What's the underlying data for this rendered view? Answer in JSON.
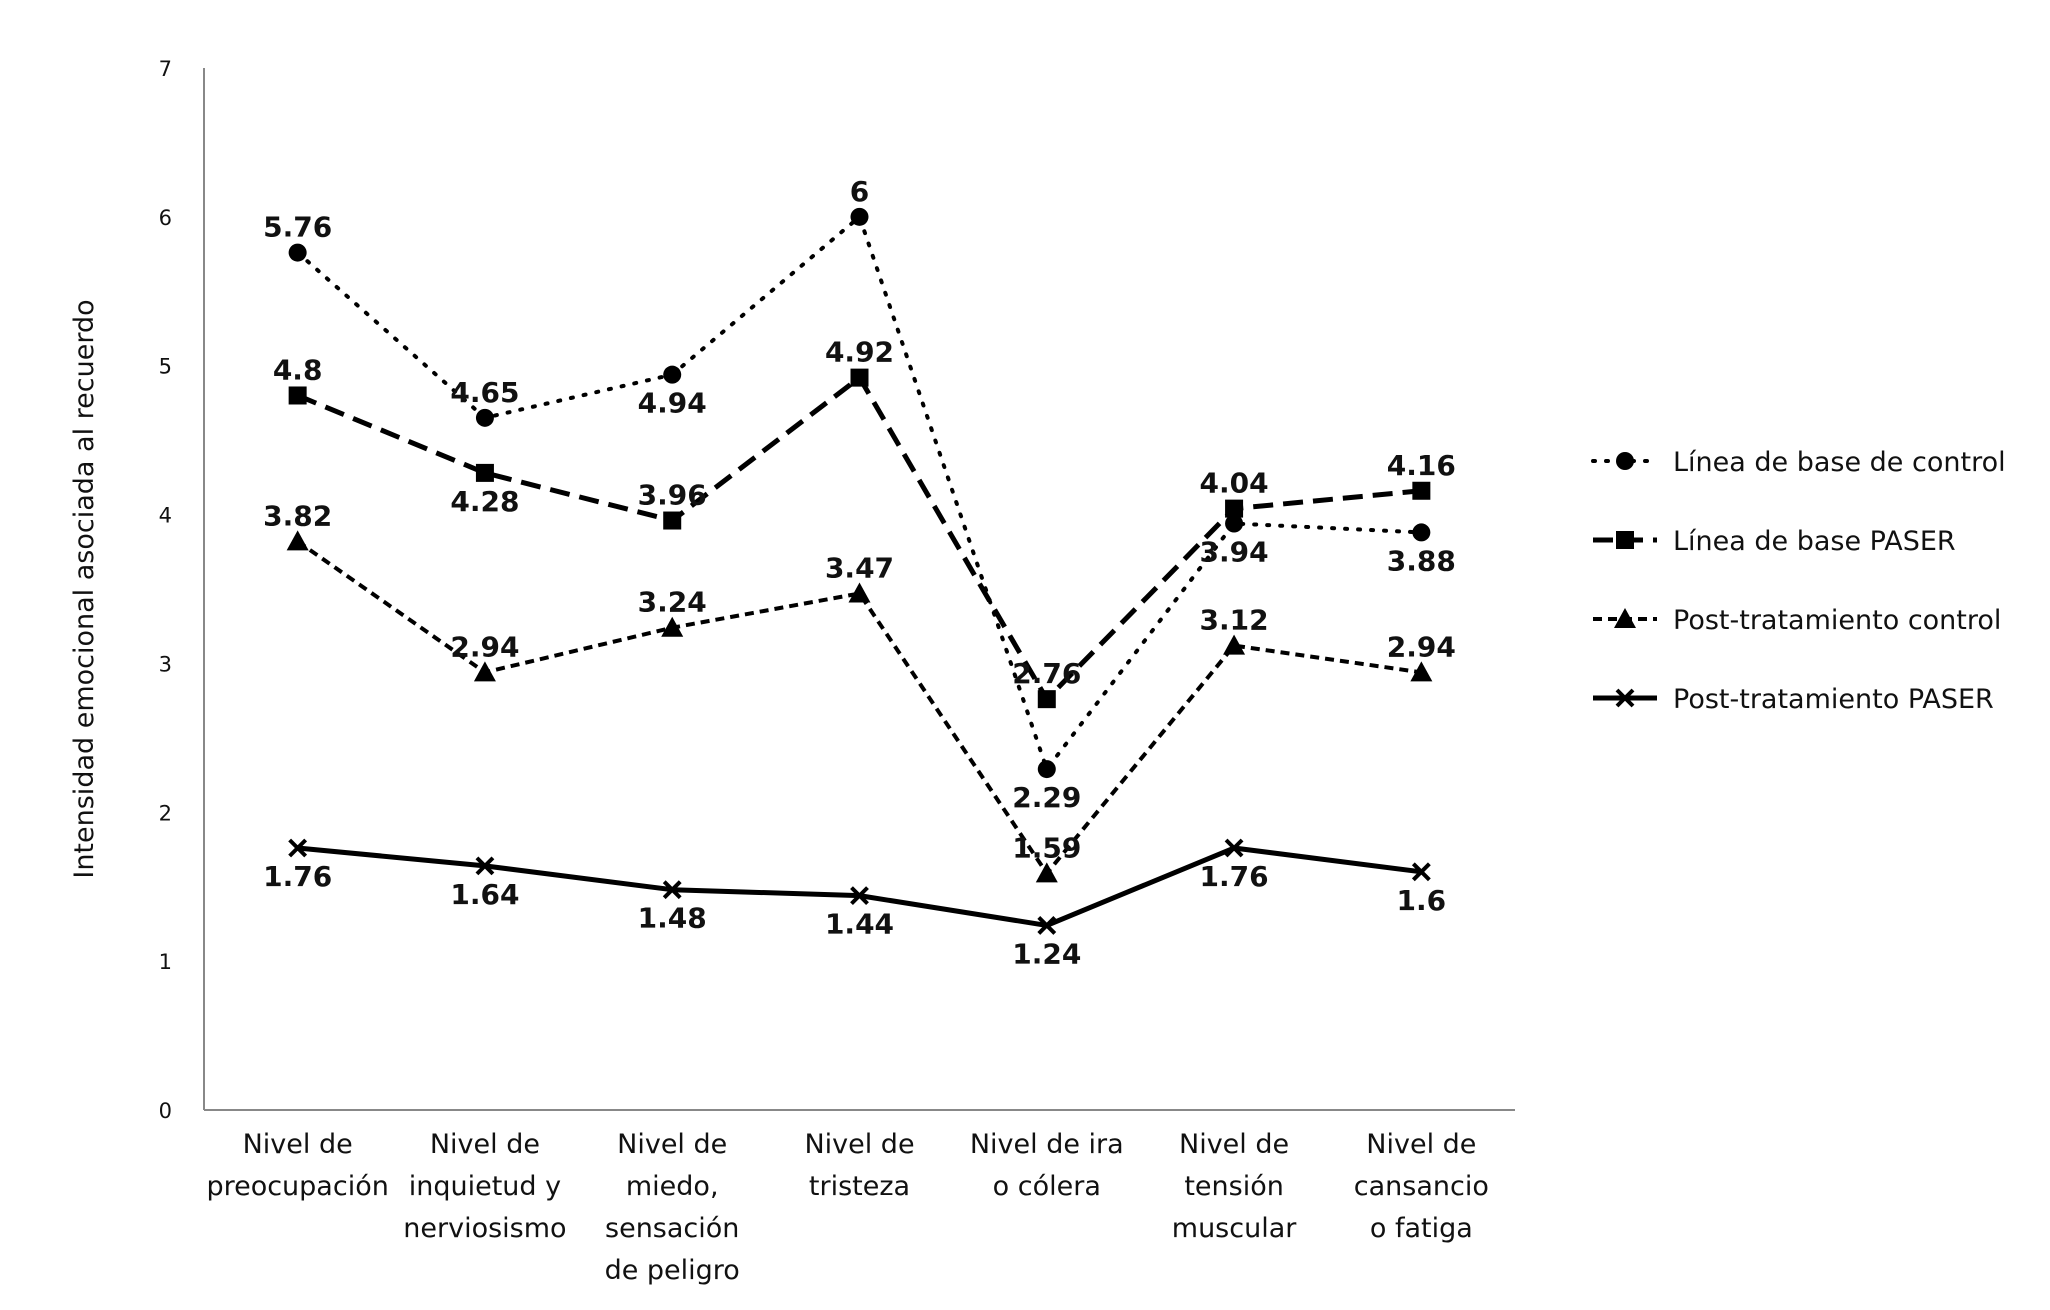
{
  "chart_data": {
    "type": "line",
    "title": "",
    "ylabel": "Intensidad emocional asociada al recuerdo",
    "xlabel": "",
    "ylim": [
      0,
      7
    ],
    "yticks": [
      "0",
      "1",
      "2",
      "3",
      "4",
      "5",
      "6",
      "7"
    ],
    "grid": false,
    "legend_position": "right",
    "categories": [
      [
        "Nivel de",
        "preocupación"
      ],
      [
        "Nivel de",
        "inquietud y",
        "nerviosismo"
      ],
      [
        "Nivel de",
        "miedo,",
        "sensación",
        "de peligro"
      ],
      [
        "Nivel de",
        "tristeza"
      ],
      [
        "Nivel de ira",
        "o cólera"
      ],
      [
        "Nivel de",
        "tensión",
        "muscular"
      ],
      [
        "Nivel de",
        "cansancio",
        "o fatiga"
      ]
    ],
    "series": [
      {
        "name": "Línea de base de control",
        "marker": "circle",
        "dash": "dotted",
        "values": [
          5.76,
          4.65,
          4.94,
          6,
          2.29,
          3.94,
          3.88
        ],
        "value_labels": [
          "5.76",
          "4.65",
          "4.94",
          "6",
          "2.29",
          "3.94",
          "3.88"
        ]
      },
      {
        "name": "Línea de base PASER",
        "marker": "square",
        "dash": "dashed",
        "values": [
          4.8,
          4.28,
          3.96,
          4.92,
          2.76,
          4.04,
          4.16
        ],
        "value_labels": [
          "4.8",
          "4.28",
          "3.96",
          "4.92",
          "2.76",
          "4.04",
          "4.16"
        ]
      },
      {
        "name": "Post-tratamiento control",
        "marker": "triangle",
        "dash": "short-dashed",
        "values": [
          3.82,
          2.94,
          3.24,
          3.47,
          1.59,
          3.12,
          2.94
        ],
        "value_labels": [
          "3.82",
          "2.94",
          "3.24",
          "3.47",
          "1.59",
          "3.12",
          "2.94"
        ]
      },
      {
        "name": "Post-tratamiento PASER",
        "marker": "x",
        "dash": "solid",
        "values": [
          1.76,
          1.64,
          1.48,
          1.44,
          1.24,
          1.76,
          1.6
        ],
        "value_labels": [
          "1.76",
          "1.64",
          "1.48",
          "1.44",
          "1.24",
          "1.76",
          "1.6"
        ]
      }
    ],
    "colors": {
      "line": "#000000",
      "text": "#111111",
      "axis": "#888888"
    }
  }
}
